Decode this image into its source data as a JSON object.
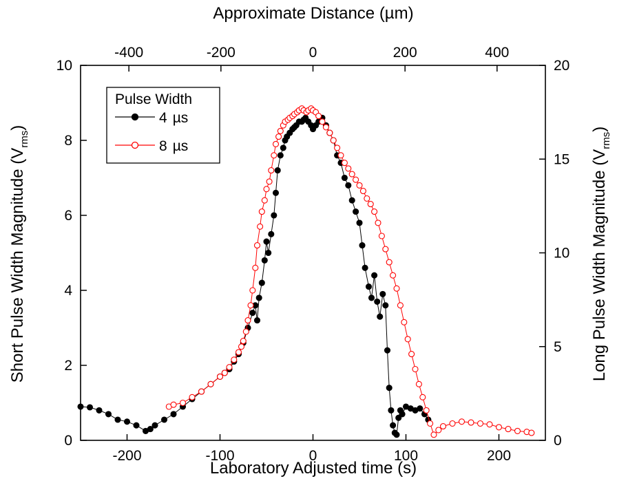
{
  "chart_data": {
    "type": "scatter",
    "xlabel": "Laboratory Adjusted time (s)",
    "xlabel_top": "Approximate Distance (µm)",
    "ylabel_left_main": "Short Pulse Width Magnitude (V",
    "ylabel_left_sub": "rms",
    "ylabel_left_end": ")",
    "ylabel_right_main": "Long Pulse Width Magnitude (V",
    "ylabel_right_sub": "rms",
    "ylabel_right_end": ")",
    "xlim": [
      -250,
      250
    ],
    "ylim_left": [
      0,
      10
    ],
    "ylim_right": [
      0,
      20
    ],
    "xlim_top": [
      -505,
      505
    ],
    "x_ticks": [
      -200,
      -100,
      0,
      100,
      200
    ],
    "x_tick_labels": [
      "-200",
      "-100",
      "0",
      "100",
      "200"
    ],
    "top_ticks": [
      -400,
      -200,
      0,
      200,
      400
    ],
    "top_tick_labels": [
      "-400",
      "-200",
      "0",
      "200",
      "400"
    ],
    "yleft_ticks": [
      0,
      2,
      4,
      6,
      8,
      10
    ],
    "yleft_tick_labels": [
      "0",
      "2",
      "4",
      "6",
      "8",
      "10"
    ],
    "yright_ticks": [
      0,
      5,
      10,
      15,
      20
    ],
    "yright_tick_labels": [
      "0",
      "5",
      "10",
      "15",
      "20"
    ],
    "grid": false,
    "legend": {
      "title": "Pulse Width",
      "placement": "top-left",
      "unit": "µs"
    },
    "series": [
      {
        "name": "4",
        "axis": "left",
        "color": "#000000",
        "marker": "filled-circle",
        "x": [
          -250,
          -240,
          -230,
          -220,
          -210,
          -200,
          -190,
          -180,
          -175,
          -170,
          -160,
          -150,
          -140,
          -130,
          -120,
          -110,
          -100,
          -95,
          -90,
          -85,
          -80,
          -75,
          -70,
          -65,
          -62,
          -60,
          -58,
          -55,
          -52,
          -50,
          -48,
          -45,
          -42,
          -40,
          -38,
          -35,
          -32,
          -30,
          -28,
          -25,
          -22,
          -20,
          -18,
          -15,
          -12,
          -10,
          -8,
          -5,
          -2,
          0,
          3,
          6,
          10,
          14,
          18,
          22,
          26,
          30,
          34,
          38,
          42,
          46,
          50,
          53,
          56,
          60,
          63,
          66,
          69,
          72,
          75,
          78,
          80,
          82,
          84,
          86,
          88,
          90,
          92,
          94,
          96,
          100,
          105,
          110,
          115,
          120,
          124
        ],
        "y": [
          0.9,
          0.88,
          0.8,
          0.7,
          0.55,
          0.5,
          0.4,
          0.25,
          0.3,
          0.4,
          0.55,
          0.7,
          0.9,
          1.1,
          1.3,
          1.5,
          1.7,
          1.8,
          1.9,
          2.1,
          2.3,
          2.6,
          3.0,
          3.4,
          3.6,
          3.2,
          3.8,
          4.2,
          4.8,
          5.3,
          5.0,
          5.5,
          6.0,
          6.6,
          7.2,
          7.6,
          7.8,
          8.0,
          8.1,
          8.2,
          8.3,
          8.35,
          8.4,
          8.5,
          8.5,
          8.55,
          8.6,
          8.5,
          8.4,
          8.3,
          8.4,
          8.5,
          8.6,
          8.4,
          8.2,
          8.0,
          7.6,
          7.4,
          7.0,
          6.8,
          6.4,
          6.1,
          5.8,
          5.2,
          4.6,
          4.1,
          3.8,
          4.4,
          3.7,
          3.3,
          3.9,
          3.6,
          2.4,
          1.4,
          0.8,
          0.4,
          0.2,
          0.15,
          0.6,
          0.8,
          0.7,
          0.9,
          0.85,
          0.8,
          0.85,
          0.7,
          0.55
        ]
      },
      {
        "name": "8",
        "axis": "right",
        "color": "#ff0000",
        "marker": "open-circle",
        "x": [
          -155,
          -150,
          -140,
          -130,
          -120,
          -110,
          -100,
          -95,
          -90,
          -85,
          -80,
          -77,
          -75,
          -72,
          -70,
          -67,
          -65,
          -62,
          -60,
          -57,
          -55,
          -52,
          -50,
          -47,
          -45,
          -42,
          -40,
          -37,
          -35,
          -32,
          -30,
          -27,
          -25,
          -22,
          -20,
          -17,
          -15,
          -12,
          -10,
          -7,
          -5,
          -2,
          0,
          3,
          6,
          10,
          14,
          18,
          22,
          26,
          30,
          34,
          38,
          42,
          46,
          50,
          54,
          58,
          62,
          66,
          70,
          74,
          78,
          82,
          86,
          90,
          94,
          98,
          102,
          106,
          110,
          114,
          118,
          122,
          126,
          130,
          135,
          140,
          150,
          160,
          170,
          180,
          190,
          200,
          210,
          220,
          230,
          235
        ],
        "y": [
          1.8,
          1.9,
          2.0,
          2.3,
          2.6,
          3.0,
          3.4,
          3.6,
          3.9,
          4.3,
          4.7,
          5.0,
          5.3,
          5.8,
          6.4,
          7.2,
          8.0,
          9.2,
          10.4,
          11.4,
          12.2,
          12.8,
          13.4,
          13.8,
          14.4,
          15.2,
          15.8,
          16.2,
          16.5,
          16.8,
          17.0,
          17.1,
          17.2,
          17.3,
          17.4,
          17.5,
          17.6,
          17.7,
          17.6,
          17.5,
          17.6,
          17.7,
          17.6,
          17.5,
          17.3,
          17.0,
          16.7,
          16.4,
          16.0,
          15.6,
          15.2,
          14.8,
          14.5,
          14.2,
          13.9,
          13.6,
          13.3,
          12.9,
          12.6,
          12.2,
          11.6,
          10.9,
          10.2,
          9.5,
          8.8,
          8.1,
          7.2,
          6.3,
          5.4,
          4.6,
          3.8,
          3.0,
          2.3,
          1.6,
          0.9,
          0.3,
          0.55,
          0.75,
          0.9,
          1.0,
          0.95,
          0.9,
          0.85,
          0.7,
          0.6,
          0.5,
          0.45,
          0.4
        ]
      }
    ]
  }
}
